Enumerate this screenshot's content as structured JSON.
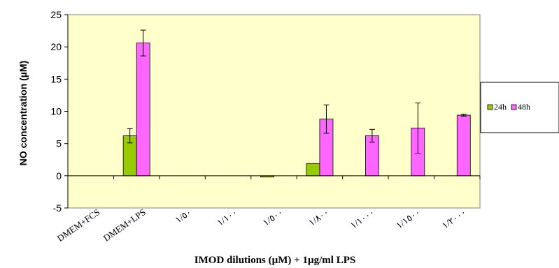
{
  "chart_data": {
    "type": "bar",
    "title": "",
    "xlabel": "IMOD dilutions (µM) + 1µg/ml LPS",
    "ylabel": "NO concentration (µM)",
    "ylim": [
      -5,
      25
    ],
    "yticks": [
      -5,
      0,
      5,
      10,
      15,
      20,
      25
    ],
    "grid": false,
    "legend_position": "right",
    "plot_background": "#ffffcc",
    "categories": [
      "DMEM+FCS",
      "DMEM+LPS",
      "١/٥٠",
      "١/١٠٠",
      "١/٥٠٠",
      "١/٨٠٠",
      "١/١٠٠٠",
      "١/١٥٠٠",
      "١/٢٠٠٠"
    ],
    "series": [
      {
        "name": "24h",
        "color": "#99cc00",
        "values": [
          0,
          6.2,
          0,
          0,
          -0.2,
          1.9,
          0,
          0,
          0
        ],
        "errors": [
          0,
          1.1,
          0,
          0,
          0,
          0,
          0,
          0,
          0
        ]
      },
      {
        "name": "48h",
        "color": "#ff66ff",
        "values": [
          0,
          20.6,
          0,
          0,
          0,
          8.8,
          6.2,
          7.4,
          9.4
        ],
        "errors": [
          0,
          2.0,
          0,
          0,
          0,
          2.2,
          1.0,
          3.9,
          0.15
        ]
      }
    ]
  }
}
